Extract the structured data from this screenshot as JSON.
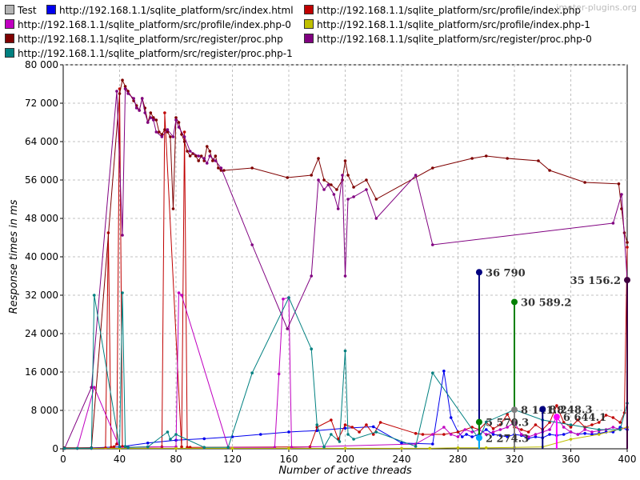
{
  "watermark": "jmeter-plugins.org",
  "chart_data": {
    "type": "line",
    "title": "",
    "xlabel": "Number of active threads",
    "ylabel": "Response times in ms",
    "xlim": [
      0,
      400
    ],
    "ylim": [
      0,
      80000
    ],
    "x_ticks": [
      0,
      40,
      80,
      120,
      160,
      200,
      240,
      280,
      320,
      360,
      400
    ],
    "y_ticks": [
      0,
      8000,
      16000,
      24000,
      32000,
      40000,
      48000,
      56000,
      64000,
      72000,
      80000
    ],
    "x_tick_labels": [
      "0",
      "40",
      "80",
      "120",
      "160",
      "200",
      "240",
      "280",
      "320",
      "360",
      "400"
    ],
    "y_tick_labels": [
      "0",
      "8 000",
      "16 000",
      "24 000",
      "32 000",
      "40 000",
      "48 000",
      "56 000",
      "64 000",
      "72 000",
      "80 000"
    ],
    "grid": true,
    "legend_position": "top",
    "series": [
      {
        "name": "Test",
        "color": "#b4b4b4",
        "x": [],
        "y": []
      },
      {
        "name": "http://192.168.1.1/sqlite_platform/src/index.html",
        "color": "#0000ee",
        "x": [
          1,
          20,
          40,
          60,
          80,
          100,
          120,
          140,
          160,
          180,
          200,
          220,
          240,
          262,
          270,
          275,
          280,
          283,
          286,
          290,
          295,
          300,
          305,
          310,
          315,
          320,
          325,
          330,
          335,
          340,
          345,
          350,
          355,
          360,
          365,
          370,
          375,
          380,
          385,
          390,
          395,
          400
        ],
        "y": [
          100,
          200,
          400,
          1200,
          1800,
          2100,
          2500,
          3000,
          3500,
          3800,
          4300,
          4600,
          1200,
          1000,
          16200,
          6500,
          3500,
          2500,
          3000,
          2500,
          3000,
          4000,
          3000,
          2800,
          2500,
          3000,
          2800,
          2200,
          2500,
          2300,
          3000,
          2800,
          3000,
          3500,
          3000,
          3200,
          3000,
          3200,
          3500,
          3500,
          4500,
          4000
        ]
      },
      {
        "name": "http://192.168.1.1/sqlite_platform/src/profile/index.php",
        "color": "#c00000",
        "x": [
          1,
          10,
          20,
          30,
          32,
          34,
          36,
          38,
          40,
          42,
          44,
          46,
          70,
          72,
          84,
          86,
          88,
          90,
          175,
          180,
          190,
          195,
          200,
          205,
          210,
          215,
          220,
          225,
          250,
          255,
          270,
          280,
          290,
          295,
          300,
          305,
          310,
          315,
          320,
          325,
          330,
          335,
          340,
          345,
          350,
          355,
          360,
          365,
          370,
          375,
          380,
          385,
          390,
          395,
          398,
          400
        ],
        "y": [
          100,
          100,
          100,
          200,
          45000,
          300,
          400,
          1000,
          75000,
          500,
          400,
          300,
          400,
          70000,
          400,
          66000,
          300,
          300,
          400,
          4500,
          6000,
          2000,
          5000,
          4500,
          3500,
          5000,
          3000,
          5500,
          3200,
          3000,
          3000,
          3500,
          4500,
          4000,
          5500,
          4200,
          5000,
          7200,
          4500,
          4000,
          3500,
          5000,
          4000,
          5500,
          9000,
          5500,
          4500,
          6000,
          4500,
          5000,
          5500,
          7000,
          6500,
          5500,
          7500,
          42000
        ]
      },
      {
        "name": "http://192.168.1.1/sqlite_platform/src/profile/index.php-0",
        "color": "#c000c0",
        "x": [
          1,
          10,
          22,
          40,
          60,
          80,
          82,
          84,
          117,
          150,
          153,
          156,
          160,
          162,
          250,
          262,
          270,
          275,
          280,
          285,
          290,
          295,
          300,
          305,
          310,
          315,
          320,
          325,
          330,
          335,
          340,
          345,
          350,
          355,
          360,
          365,
          370,
          375,
          380,
          385,
          390,
          395,
          400
        ],
        "y": [
          100,
          100,
          12800,
          300,
          400,
          400,
          32500,
          32000,
          300,
          300,
          15600,
          31200,
          31500,
          300,
          1000,
          3000,
          4500,
          3000,
          2500,
          4000,
          3500,
          4000,
          3000,
          3500,
          4000,
          4500,
          5500,
          3000,
          2500,
          3000,
          3500,
          4000,
          6644,
          4500,
          3500,
          3000,
          4000,
          3500,
          3800,
          4000,
          4500,
          4000,
          4500
        ]
      },
      {
        "name": "http://192.168.1.1/sqlite_platform/src/profile/index.php-1",
        "color": "#c0c000",
        "x": [
          1,
          40,
          80,
          120,
          160,
          200,
          240,
          260,
          280,
          300,
          320,
          340,
          360,
          380,
          400
        ],
        "y": [
          100,
          100,
          100,
          100,
          100,
          100,
          100,
          100,
          200,
          200,
          300,
          400,
          2000,
          3000,
          4500
        ]
      },
      {
        "name": "http://192.168.1.1/sqlite_platform/src/register/proc.php",
        "color": "#7f0000",
        "x": [
          1,
          20,
          40,
          42,
          44,
          46,
          50,
          52,
          54,
          56,
          58,
          60,
          62,
          64,
          66,
          68,
          70,
          72,
          74,
          76,
          78,
          80,
          82,
          84,
          86,
          88,
          90,
          92,
          94,
          96,
          98,
          100,
          102,
          104,
          106,
          108,
          110,
          112,
          114,
          134,
          159,
          176,
          181,
          185,
          190,
          194,
          198,
          200,
          202,
          206,
          215,
          222,
          262,
          290,
          300,
          315,
          337,
          345,
          370,
          394,
          396,
          398,
          400
        ],
        "y": [
          200,
          200,
          74000,
          76800,
          75500,
          74500,
          72500,
          71500,
          70500,
          73000,
          71000,
          68000,
          70000,
          69000,
          68500,
          66000,
          65500,
          66500,
          66000,
          65000,
          50000,
          69000,
          68000,
          65500,
          64000,
          62000,
          61000,
          61500,
          61000,
          60000,
          61000,
          60000,
          63000,
          62000,
          60000,
          61000,
          58500,
          58000,
          58000,
          58500,
          56500,
          57000,
          60500,
          56000,
          55000,
          54000,
          56000,
          60000,
          57000,
          54500,
          56000,
          52000,
          58500,
          60500,
          61000,
          60500,
          60000,
          58000,
          55500,
          55200,
          50000,
          45000,
          43000
        ]
      },
      {
        "name": "http://192.168.1.1/sqlite_platform/src/register/proc.php-0",
        "color": "#800080",
        "x": [
          1,
          20,
          38,
          42,
          44,
          46,
          50,
          52,
          54,
          56,
          58,
          60,
          62,
          64,
          66,
          70,
          74,
          78,
          80,
          82,
          86,
          90,
          96,
          100,
          102,
          104,
          108,
          112,
          134,
          159,
          176,
          181,
          185,
          188,
          192,
          195,
          198,
          200,
          202,
          206,
          215,
          222,
          250,
          262,
          390,
          396,
          400
        ],
        "y": [
          100,
          12800,
          74500,
          44500,
          75000,
          74000,
          73000,
          71000,
          70500,
          73000,
          70000,
          68000,
          69000,
          68500,
          66000,
          65000,
          66500,
          65000,
          68500,
          67000,
          65000,
          62000,
          61000,
          60500,
          59500,
          61000,
          60000,
          58500,
          42500,
          25000,
          36000,
          56000,
          54000,
          55000,
          53000,
          50000,
          57000,
          36000,
          52000,
          52500,
          54000,
          48000,
          57000,
          42500,
          47000,
          53000,
          35156
        ]
      },
      {
        "name": "http://192.168.1.1/sqlite_platform/src/register/proc.php-1",
        "color": "#008080",
        "x": [
          1,
          10,
          20,
          22,
          40,
          42,
          44,
          46,
          60,
          74,
          76,
          80,
          100,
          117,
          134,
          160,
          176,
          180,
          185,
          190,
          196,
          200,
          202,
          206,
          222,
          250,
          262,
          295,
          300,
          320,
          340,
          360,
          380,
          395,
          400
        ],
        "y": [
          100,
          100,
          100,
          32000,
          400,
          32500,
          500,
          300,
          400,
          3500,
          2000,
          3000,
          300,
          300,
          15800,
          31500,
          20800,
          5000,
          400,
          3000,
          1500,
          20400,
          3000,
          2000,
          3500,
          500,
          15800,
          2000,
          5570,
          8141,
          6000,
          5000,
          4000,
          4000,
          9500
        ]
      }
    ],
    "point_labels": [
      {
        "x": 295,
        "y": 36790,
        "text": "36 790",
        "color": "#000080"
      },
      {
        "x": 320,
        "y": 30589.2,
        "text": "30 589.2",
        "color": "#008000"
      },
      {
        "x": 400,
        "y": 35156.2,
        "text": "35 156.2",
        "color": "#400040"
      },
      {
        "x": 320,
        "y": 8141.8,
        "text": "8 141.8",
        "color": "#808080"
      },
      {
        "x": 340,
        "y": 8248.3,
        "text": "8 248.3",
        "color": "#000080"
      },
      {
        "x": 295,
        "y": 5570.3,
        "text": "5 570.3",
        "color": "#008000"
      },
      {
        "x": 350,
        "y": 6644.1,
        "text": "6 644.1",
        "color": "#ff00ff"
      },
      {
        "x": 295,
        "y": 2274.3,
        "text": "2 274.3",
        "color": "#00aaff"
      }
    ]
  }
}
